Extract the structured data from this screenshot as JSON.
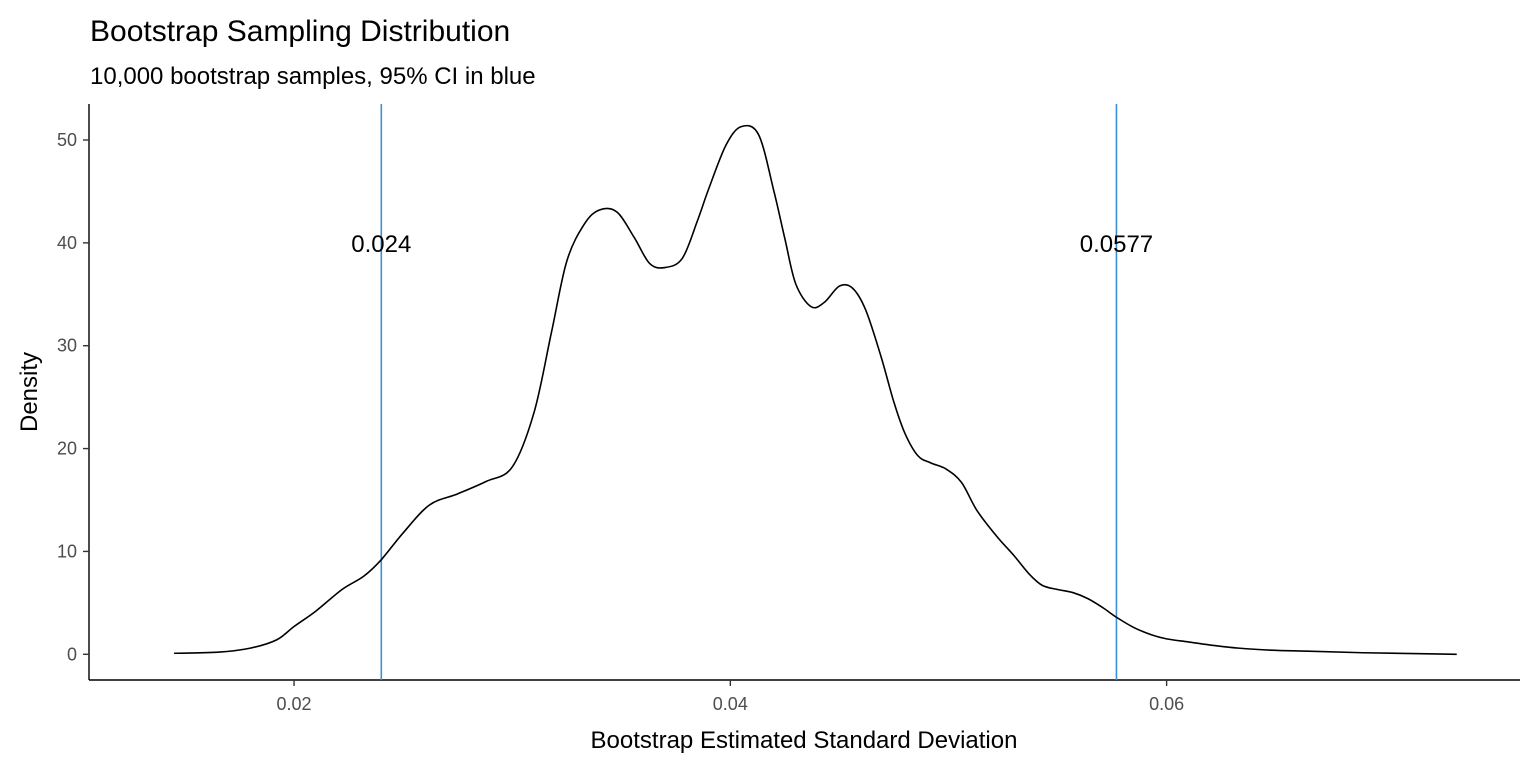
{
  "chart_data": {
    "type": "line",
    "title": "Bootstrap Sampling Distribution",
    "subtitle": "10,000 bootstrap samples, 95% CI in blue",
    "xlabel": "Bootstrap Estimated Standard Deviation",
    "ylabel": "Density",
    "xlim": [
      0.0106,
      0.0762
    ],
    "ylim": [
      -2.5,
      53.5
    ],
    "x_ticks": [
      0.02,
      0.04,
      0.06
    ],
    "x_tick_labels": [
      "0.02",
      "0.04",
      "0.06"
    ],
    "y_ticks": [
      0,
      10,
      20,
      30,
      40,
      50
    ],
    "y_tick_labels": [
      "0",
      "10",
      "20",
      "30",
      "40",
      "50"
    ],
    "grid": false,
    "line_color": "#000000",
    "ci_color": "#3a8fd6",
    "series": [
      {
        "x": [
          0.0145,
          0.0165,
          0.018,
          0.0192,
          0.02,
          0.021,
          0.0222,
          0.0232,
          0.024,
          0.025,
          0.0262,
          0.0275,
          0.0288,
          0.03,
          0.031,
          0.0318,
          0.0325,
          0.0333,
          0.034,
          0.0348,
          0.0356,
          0.0363,
          0.037,
          0.0378,
          0.0385,
          0.039,
          0.0398,
          0.0405,
          0.0413,
          0.042,
          0.0425,
          0.043,
          0.0437,
          0.0443,
          0.045,
          0.0456,
          0.0462,
          0.0469,
          0.0475,
          0.048,
          0.0486,
          0.0492,
          0.0499,
          0.0506,
          0.0513,
          0.0522,
          0.053,
          0.0537,
          0.0543,
          0.055,
          0.0557,
          0.0564,
          0.0571,
          0.0577,
          0.0585,
          0.0593,
          0.06,
          0.061,
          0.062,
          0.0633,
          0.0648,
          0.0665,
          0.069,
          0.072,
          0.0733
        ],
        "y": [
          0.1,
          0.2,
          0.6,
          1.4,
          2.7,
          4.2,
          6.3,
          7.6,
          9.2,
          11.8,
          14.5,
          15.6,
          16.8,
          18.2,
          23.5,
          31.3,
          38.2,
          41.8,
          43.2,
          43.0,
          40.5,
          38.0,
          37.6,
          38.5,
          42.2,
          45.2,
          49.5,
          51.3,
          50.5,
          45.0,
          40.4,
          36.0,
          33.8,
          34.2,
          35.8,
          35.6,
          33.5,
          29.0,
          24.5,
          21.5,
          19.3,
          18.6,
          18.0,
          16.7,
          14.0,
          11.5,
          9.6,
          7.8,
          6.7,
          6.3,
          6.0,
          5.4,
          4.5,
          3.6,
          2.6,
          1.9,
          1.5,
          1.2,
          0.9,
          0.6,
          0.4,
          0.3,
          0.15,
          0.05,
          0.0
        ]
      }
    ],
    "ci": {
      "lower": 0.024,
      "upper": 0.0577,
      "lower_label": "0.024",
      "upper_label": "0.0577",
      "label_y": 40
    }
  }
}
